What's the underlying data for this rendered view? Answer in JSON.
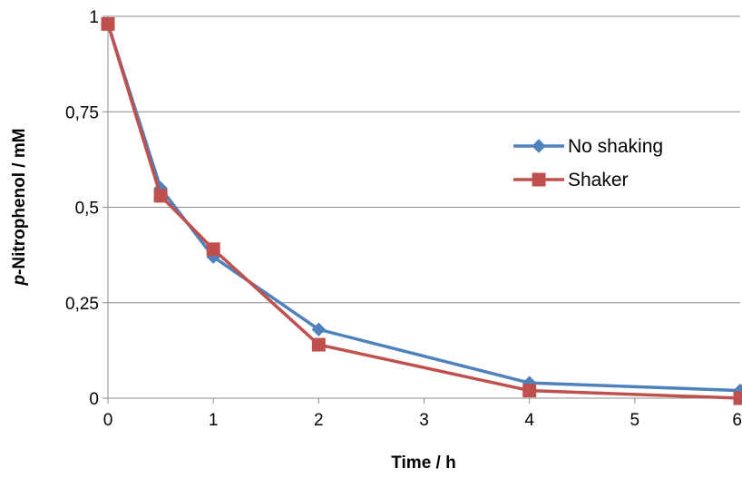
{
  "chart_data": {
    "type": "line",
    "title": "",
    "xlabel": "Time / h",
    "ylabel_prefix": "p",
    "ylabel_rest": "-Nitrophenol / mM",
    "xlim": [
      0,
      6
    ],
    "ylim": [
      0,
      1
    ],
    "x_ticks": [
      0,
      1,
      2,
      3,
      4,
      5,
      6
    ],
    "x_tick_labels": [
      "0",
      "1",
      "2",
      "3",
      "4",
      "5",
      "6"
    ],
    "y_ticks": [
      0,
      0.25,
      0.5,
      0.75,
      1
    ],
    "y_tick_labels": [
      "0",
      "0,25",
      "0,5",
      "0,75",
      "1"
    ],
    "grid": "horizontal",
    "legend_position": "right",
    "series": [
      {
        "name": "No shaking",
        "color": "#4F81BD",
        "marker": "diamond",
        "x": [
          0,
          0.5,
          1,
          2,
          4,
          6
        ],
        "y": [
          0.98,
          0.55,
          0.37,
          0.18,
          0.04,
          0.02
        ]
      },
      {
        "name": "Shaker",
        "color": "#C0504D",
        "marker": "square",
        "x": [
          0,
          0.5,
          1,
          2,
          4,
          6
        ],
        "y": [
          0.98,
          0.53,
          0.39,
          0.14,
          0.02,
          0.0
        ]
      }
    ]
  }
}
